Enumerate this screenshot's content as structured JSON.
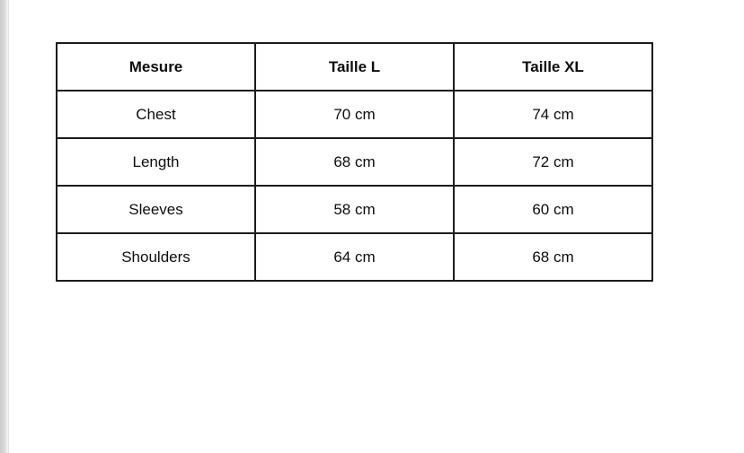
{
  "page": {
    "background_color": "#ffffff",
    "edge_strip_color": "#d6d6d6"
  },
  "table": {
    "border_color": "#1c1c1c",
    "columns": [
      "Mesure",
      "Taille L",
      "Taille XL"
    ],
    "rows": [
      {
        "measure": "Chest",
        "taille_l": "70 cm",
        "taille_xl": "74 cm"
      },
      {
        "measure": "Length",
        "taille_l": "68 cm",
        "taille_xl": "72 cm"
      },
      {
        "measure": "Sleeves",
        "taille_l": "58 cm",
        "taille_xl": "60 cm"
      },
      {
        "measure": "Shoulders",
        "taille_l": "64 cm",
        "taille_xl": "68 cm"
      }
    ]
  }
}
